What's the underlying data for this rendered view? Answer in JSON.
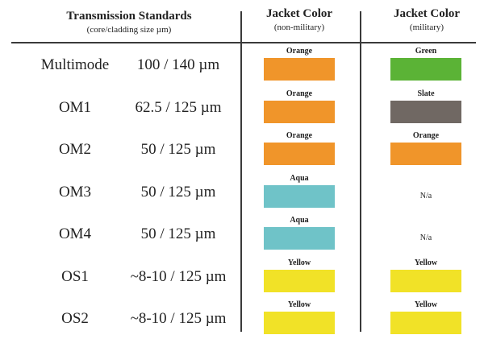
{
  "headers": {
    "standards_title": "Transmission Standards",
    "standards_sub": "(core/cladding size µm)",
    "nonmil_title": "Jacket Color",
    "nonmil_sub": "(non-military)",
    "mil_title": "Jacket Color",
    "mil_sub": "(military)"
  },
  "rows": [
    {
      "name": "Multimode",
      "size": "100 / 140 µm",
      "nonmil": {
        "label": "Orange",
        "color": "#f0952a"
      },
      "mil": {
        "label": "Green",
        "color": "#5bb336"
      }
    },
    {
      "name": "OM1",
      "size": "62.5 / 125 µm",
      "nonmil": {
        "label": "Orange",
        "color": "#f0952a"
      },
      "mil": {
        "label": "Slate",
        "color": "#706863"
      }
    },
    {
      "name": "OM2",
      "size": "50 / 125 µm",
      "nonmil": {
        "label": "Orange",
        "color": "#f0952a"
      },
      "mil": {
        "label": "Orange",
        "color": "#f0952a"
      }
    },
    {
      "name": "OM3",
      "size": "50 / 125 µm",
      "nonmil": {
        "label": "Aqua",
        "color": "#6fc3c8"
      },
      "mil": {
        "label": "N/a",
        "color": null
      }
    },
    {
      "name": "OM4",
      "size": "50 / 125 µm",
      "nonmil": {
        "label": "Aqua",
        "color": "#6fc3c8"
      },
      "mil": {
        "label": "N/a",
        "color": null
      }
    },
    {
      "name": "OS1",
      "size": "~8-10 / 125 µm",
      "nonmil": {
        "label": "Yellow",
        "color": "#f1e227"
      },
      "mil": {
        "label": "Yellow",
        "color": "#f1e227"
      }
    },
    {
      "name": "OS2",
      "size": "~8-10 / 125 µm",
      "nonmil": {
        "label": "Yellow",
        "color": "#f1e227"
      },
      "mil": {
        "label": "Yellow",
        "color": "#f1e227"
      }
    }
  ]
}
